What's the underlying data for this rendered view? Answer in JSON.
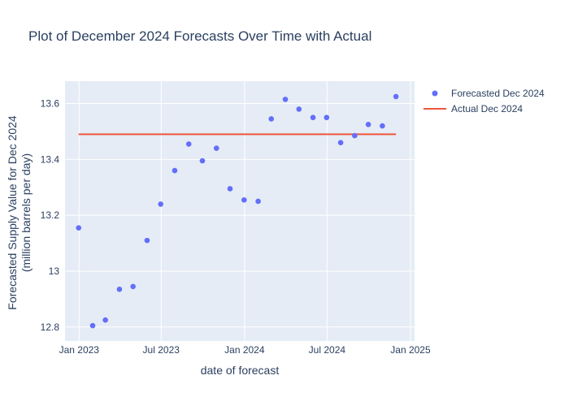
{
  "chart_data": {
    "type": "scatter",
    "title": "Plot of December 2024 Forecasts Over Time with Actual",
    "xlabel": "date of forecast",
    "ylabel": "Forecasted Supply Value for Dec 2024",
    "ylabel_line2": "(million barrels per day)",
    "xlim": [
      "2022-12-01",
      "2025-01-10"
    ],
    "ylim": [
      12.75,
      13.68
    ],
    "x_ticks": [
      {
        "value": "2023-01-01",
        "label": "Jan 2023"
      },
      {
        "value": "2023-07-01",
        "label": "Jul 2023"
      },
      {
        "value": "2024-01-01",
        "label": "Jan 2024"
      },
      {
        "value": "2024-07-01",
        "label": "Jul 2024"
      },
      {
        "value": "2025-01-01",
        "label": "Jan 2025"
      }
    ],
    "y_ticks": [
      {
        "value": 12.8,
        "label": "12.8"
      },
      {
        "value": 13.0,
        "label": "13"
      },
      {
        "value": 13.2,
        "label": "13.2"
      },
      {
        "value": 13.4,
        "label": "13.4"
      },
      {
        "value": 13.6,
        "label": "13.6"
      }
    ],
    "grid": true,
    "legend_position": "top-right, outside plot",
    "series": [
      {
        "name": "Forecasted Dec 2024",
        "kind": "markers",
        "color": "#636efa",
        "x": [
          "2022-12-31",
          "2023-01-31",
          "2023-02-28",
          "2023-03-31",
          "2023-04-30",
          "2023-05-31",
          "2023-06-30",
          "2023-07-31",
          "2023-08-31",
          "2023-09-30",
          "2023-10-31",
          "2023-11-30",
          "2023-12-31",
          "2024-01-31",
          "2024-02-29",
          "2024-03-31",
          "2024-04-30",
          "2024-05-31",
          "2024-06-30",
          "2024-07-31",
          "2024-08-31",
          "2024-09-30",
          "2024-10-31",
          "2024-11-30"
        ],
        "y": [
          13.155,
          12.805,
          12.825,
          12.935,
          12.945,
          13.11,
          13.24,
          13.36,
          13.455,
          13.395,
          13.44,
          13.295,
          13.255,
          13.25,
          13.545,
          13.615,
          13.58,
          13.55,
          13.55,
          13.46,
          13.485,
          13.525,
          13.52,
          13.625
        ]
      },
      {
        "name": "Actual Dec 2024",
        "kind": "line",
        "color": "#ef553b",
        "x": [
          "2022-12-31",
          "2024-11-30"
        ],
        "y": [
          13.49,
          13.49
        ]
      }
    ]
  }
}
